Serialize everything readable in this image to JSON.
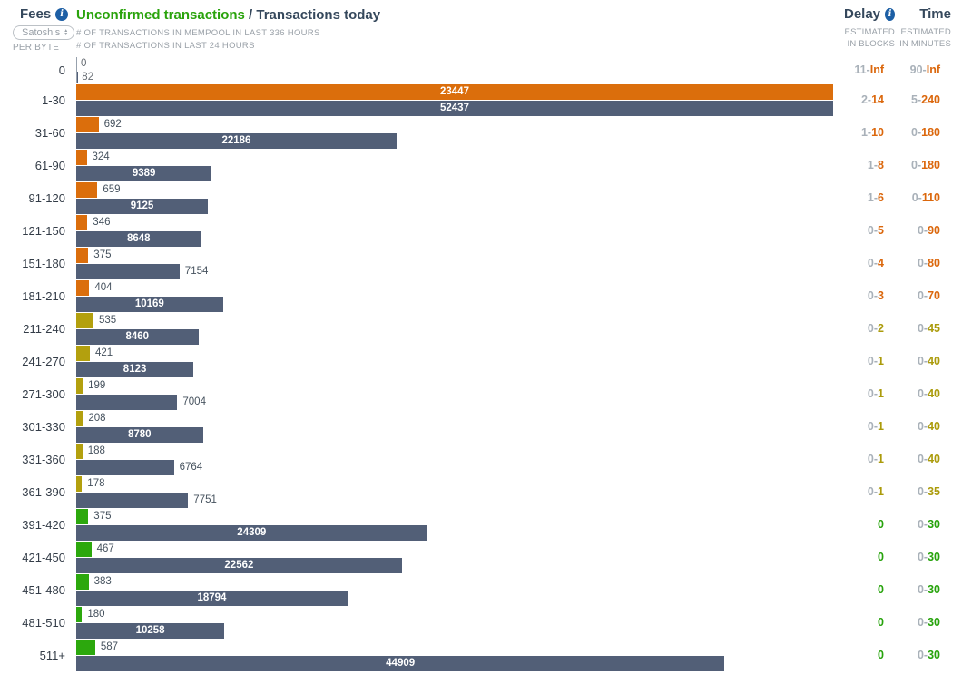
{
  "header": {
    "fees_label": "Fees",
    "unit_selected": "Satoshis",
    "unit_sub": "PER BYTE",
    "title_green": "Unconfirmed transactions",
    "title_dark": " / Transactions today",
    "subtitle_mempool": "# OF TRANSACTIONS IN MEMPOOL IN LAST 336 HOURS",
    "subtitle_today": "# OF TRANSACTIONS IN LAST 24 HOURS",
    "delay_label": "Delay",
    "delay_sub1": "ESTIMATED",
    "delay_sub2": "IN BLOCKS",
    "time_label": "Time",
    "time_sub1": "ESTIMATED",
    "time_sub2": "IN MINUTES",
    "info_icon": "i"
  },
  "colors": {
    "orange": "#db6e0c",
    "olive": "#b3a00e",
    "green": "#2ca80d",
    "slate_bar": "#525f77",
    "title_green": "#2aa30c",
    "heading_dark": "#35485c",
    "muted_gray": "#9aa1a8",
    "info_blue": "#1d5fa5"
  },
  "chart_data": {
    "type": "bar",
    "orientation": "horizontal",
    "title": "Unconfirmed transactions / Transactions today",
    "xlabel": "# of transactions",
    "ylabel": "Fees (Satoshis per byte)",
    "legend_position": "top",
    "grid": false,
    "mempool_axis_max": 23447,
    "today_axis_max": 52437,
    "categories": [
      "0",
      "1-30",
      "31-60",
      "61-90",
      "91-120",
      "121-150",
      "151-180",
      "181-210",
      "211-240",
      "241-270",
      "271-300",
      "301-330",
      "331-360",
      "361-390",
      "391-420",
      "421-450",
      "451-480",
      "481-510",
      "511+"
    ],
    "series": [
      {
        "name": "Unconfirmed transactions (mempool, last 336 hours)",
        "values": [
          0,
          23447,
          692,
          324,
          659,
          346,
          375,
          404,
          535,
          421,
          199,
          208,
          188,
          178,
          375,
          467,
          383,
          180,
          587
        ]
      },
      {
        "name": "Transactions today (last 24 hours)",
        "values": [
          82,
          52437,
          22186,
          9389,
          9125,
          8648,
          7154,
          10169,
          8460,
          8123,
          7004,
          8780,
          6764,
          7751,
          24309,
          22562,
          18794,
          10258,
          44909
        ]
      }
    ],
    "delay_blocks": [
      "11-Inf",
      "2-14",
      "1-10",
      "1-8",
      "1-6",
      "0-5",
      "0-4",
      "0-3",
      "0-2",
      "0-1",
      "0-1",
      "0-1",
      "0-1",
      "0-1",
      "0",
      "0",
      "0",
      "0",
      "0"
    ],
    "time_minutes": [
      "90-Inf",
      "5-240",
      "0-180",
      "0-180",
      "0-110",
      "0-90",
      "0-80",
      "0-70",
      "0-45",
      "0-40",
      "0-40",
      "0-40",
      "0-40",
      "0-35",
      "0-30",
      "0-30",
      "0-30",
      "0-30",
      "0-30"
    ],
    "rows": [
      {
        "fee": "0",
        "mempool": 0,
        "today": 82,
        "delay_pre": "11-",
        "delay_val": "Inf",
        "time_pre": "90-",
        "time_val": "Inf",
        "tier": "orange",
        "zero_row": true
      },
      {
        "fee": "1-30",
        "mempool": 23447,
        "today": 52437,
        "delay_pre": "2-",
        "delay_val": "14",
        "time_pre": "5-",
        "time_val": "240",
        "tier": "orange"
      },
      {
        "fee": "31-60",
        "mempool": 692,
        "today": 22186,
        "delay_pre": "1-",
        "delay_val": "10",
        "time_pre": "0-",
        "time_val": "180",
        "tier": "orange"
      },
      {
        "fee": "61-90",
        "mempool": 324,
        "today": 9389,
        "delay_pre": "1-",
        "delay_val": "8",
        "time_pre": "0-",
        "time_val": "180",
        "tier": "orange"
      },
      {
        "fee": "91-120",
        "mempool": 659,
        "today": 9125,
        "delay_pre": "1-",
        "delay_val": "6",
        "time_pre": "0-",
        "time_val": "110",
        "tier": "orange"
      },
      {
        "fee": "121-150",
        "mempool": 346,
        "today": 8648,
        "delay_pre": "0-",
        "delay_val": "5",
        "time_pre": "0-",
        "time_val": "90",
        "tier": "orange"
      },
      {
        "fee": "151-180",
        "mempool": 375,
        "today": 7154,
        "delay_pre": "0-",
        "delay_val": "4",
        "time_pre": "0-",
        "time_val": "80",
        "tier": "orange"
      },
      {
        "fee": "181-210",
        "mempool": 404,
        "today": 10169,
        "delay_pre": "0-",
        "delay_val": "3",
        "time_pre": "0-",
        "time_val": "70",
        "tier": "orange"
      },
      {
        "fee": "211-240",
        "mempool": 535,
        "today": 8460,
        "delay_pre": "0-",
        "delay_val": "2",
        "time_pre": "0-",
        "time_val": "45",
        "tier": "olive"
      },
      {
        "fee": "241-270",
        "mempool": 421,
        "today": 8123,
        "delay_pre": "0-",
        "delay_val": "1",
        "time_pre": "0-",
        "time_val": "40",
        "tier": "olive"
      },
      {
        "fee": "271-300",
        "mempool": 199,
        "today": 7004,
        "delay_pre": "0-",
        "delay_val": "1",
        "time_pre": "0-",
        "time_val": "40",
        "tier": "olive"
      },
      {
        "fee": "301-330",
        "mempool": 208,
        "today": 8780,
        "delay_pre": "0-",
        "delay_val": "1",
        "time_pre": "0-",
        "time_val": "40",
        "tier": "olive"
      },
      {
        "fee": "331-360",
        "mempool": 188,
        "today": 6764,
        "delay_pre": "0-",
        "delay_val": "1",
        "time_pre": "0-",
        "time_val": "40",
        "tier": "olive"
      },
      {
        "fee": "361-390",
        "mempool": 178,
        "today": 7751,
        "delay_pre": "0-",
        "delay_val": "1",
        "time_pre": "0-",
        "time_val": "35",
        "tier": "olive"
      },
      {
        "fee": "391-420",
        "mempool": 375,
        "today": 24309,
        "delay_pre": "",
        "delay_val": "0",
        "time_pre": "0-",
        "time_val": "30",
        "tier": "green"
      },
      {
        "fee": "421-450",
        "mempool": 467,
        "today": 22562,
        "delay_pre": "",
        "delay_val": "0",
        "time_pre": "0-",
        "time_val": "30",
        "tier": "green"
      },
      {
        "fee": "451-480",
        "mempool": 383,
        "today": 18794,
        "delay_pre": "",
        "delay_val": "0",
        "time_pre": "0-",
        "time_val": "30",
        "tier": "green"
      },
      {
        "fee": "481-510",
        "mempool": 180,
        "today": 10258,
        "delay_pre": "",
        "delay_val": "0",
        "time_pre": "0-",
        "time_val": "30",
        "tier": "green"
      },
      {
        "fee": "511+",
        "mempool": 587,
        "today": 44909,
        "delay_pre": "",
        "delay_val": "0",
        "time_pre": "0-",
        "time_val": "30",
        "tier": "green"
      }
    ]
  }
}
